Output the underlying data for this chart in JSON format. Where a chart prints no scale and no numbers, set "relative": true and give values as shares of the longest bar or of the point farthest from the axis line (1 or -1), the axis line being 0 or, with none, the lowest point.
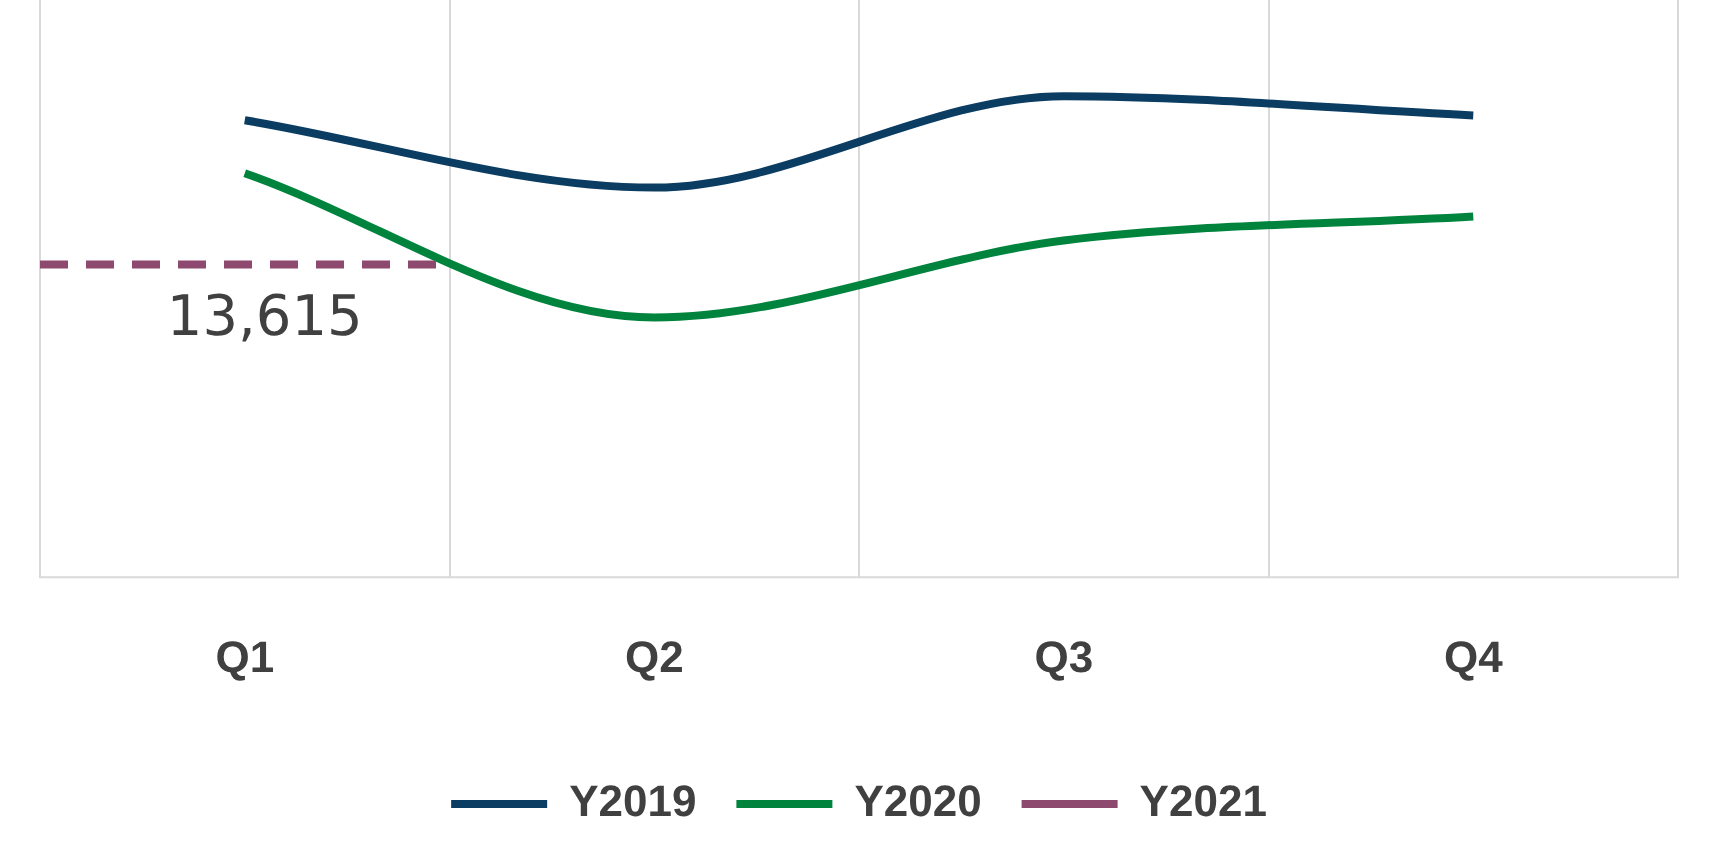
{
  "chart_data": {
    "type": "line",
    "relative": true,
    "categories": [
      "Q1",
      "Q2",
      "Q3",
      "Q4"
    ],
    "series": [
      {
        "name": "Y2019",
        "color": "#0b3c61",
        "values": [
          0.95,
          0.81,
          1,
          0.96
        ]
      },
      {
        "name": "Y2020",
        "color": "#00843d",
        "values": [
          0.84,
          0.54,
          0.7,
          0.75
        ]
      },
      {
        "name": "Y2021",
        "color": "#8e4a6e",
        "values": [
          null,
          null,
          null,
          null
        ]
      }
    ],
    "ref_lines": [
      {
        "axis": "y",
        "value": 0.65,
        "color": "#8e4a6e",
        "line_style": "dashed"
      }
    ],
    "annotations": [
      "13,615"
    ],
    "grid": "x",
    "legend": "bottom"
  }
}
